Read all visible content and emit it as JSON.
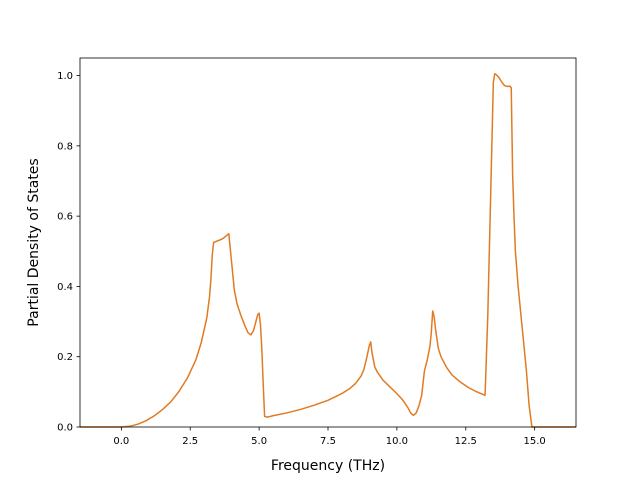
{
  "chart_data": {
    "type": "line",
    "title": "",
    "xlabel": "Frequency (THz)",
    "ylabel": "Partial Density of States",
    "xlim": [
      -1.5,
      16.5
    ],
    "ylim": [
      0.0,
      1.05
    ],
    "grid": false,
    "legend": "none",
    "x_ticks": [
      0.0,
      2.5,
      5.0,
      7.5,
      10.0,
      12.5,
      15.0
    ],
    "x_tick_labels": [
      "0.0",
      "2.5",
      "5.0",
      "7.5",
      "10.0",
      "12.5",
      "15.0"
    ],
    "y_ticks": [
      0.0,
      0.2,
      0.4,
      0.6,
      0.8,
      1.0
    ],
    "y_tick_labels": [
      "0.0",
      "0.2",
      "0.4",
      "0.6",
      "0.8",
      "1.0"
    ],
    "series": [
      {
        "color": "#e07b24",
        "x": [
          -1.5,
          -0.5,
          0.0,
          0.3,
          0.6,
          0.9,
          1.2,
          1.5,
          1.8,
          2.1,
          2.4,
          2.7,
          2.9,
          3.1,
          3.2,
          3.25,
          3.3,
          3.35,
          3.5,
          3.6,
          3.7,
          3.85,
          3.9,
          4.0,
          4.1,
          4.2,
          4.35,
          4.5,
          4.6,
          4.7,
          4.8,
          4.9,
          4.95,
          5.0,
          5.05,
          5.1,
          5.15,
          5.2,
          5.3,
          5.5,
          6.0,
          6.5,
          7.0,
          7.5,
          8.0,
          8.3,
          8.5,
          8.7,
          8.8,
          8.9,
          9.0,
          9.05,
          9.1,
          9.2,
          9.3,
          9.5,
          9.8,
          10.0,
          10.2,
          10.4,
          10.5,
          10.6,
          10.7,
          10.8,
          10.9,
          11.0,
          11.1,
          11.2,
          11.25,
          11.3,
          11.35,
          11.4,
          11.5,
          11.6,
          11.8,
          12.0,
          12.3,
          12.6,
          12.9,
          13.2,
          13.3,
          13.4,
          13.5,
          13.55,
          13.6,
          13.7,
          13.8,
          13.9,
          14.0,
          14.1,
          14.15,
          14.2,
          14.25,
          14.3,
          14.4,
          14.5,
          14.6,
          14.7,
          14.8,
          14.9,
          15.0,
          15.5,
          16.0,
          16.5
        ],
        "y": [
          0.0,
          0.0,
          0.0,
          0.002,
          0.008,
          0.018,
          0.032,
          0.05,
          0.072,
          0.102,
          0.14,
          0.19,
          0.24,
          0.31,
          0.37,
          0.42,
          0.49,
          0.525,
          0.53,
          0.533,
          0.537,
          0.547,
          0.55,
          0.47,
          0.39,
          0.35,
          0.315,
          0.285,
          0.268,
          0.262,
          0.275,
          0.305,
          0.32,
          0.324,
          0.29,
          0.22,
          0.12,
          0.03,
          0.028,
          0.032,
          0.04,
          0.05,
          0.062,
          0.076,
          0.095,
          0.11,
          0.124,
          0.145,
          0.163,
          0.195,
          0.232,
          0.242,
          0.21,
          0.17,
          0.155,
          0.133,
          0.11,
          0.095,
          0.078,
          0.055,
          0.04,
          0.033,
          0.04,
          0.06,
          0.09,
          0.16,
          0.19,
          0.23,
          0.27,
          0.33,
          0.315,
          0.28,
          0.225,
          0.2,
          0.17,
          0.148,
          0.128,
          0.112,
          0.1,
          0.09,
          0.32,
          0.65,
          0.98,
          1.005,
          1.003,
          0.995,
          0.982,
          0.972,
          0.969,
          0.97,
          0.965,
          0.72,
          0.6,
          0.5,
          0.4,
          0.32,
          0.24,
          0.16,
          0.06,
          0.0,
          0.0,
          0.0,
          0.0,
          0.0
        ]
      }
    ]
  }
}
